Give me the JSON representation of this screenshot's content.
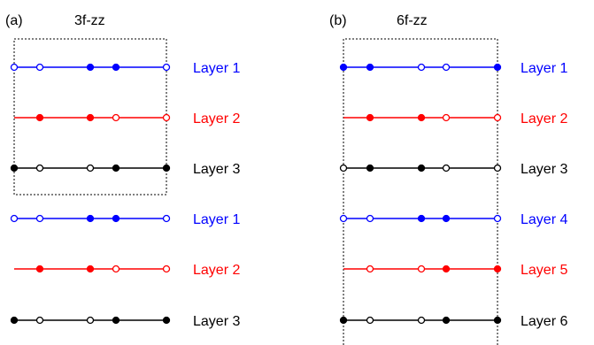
{
  "panels": [
    {
      "tag": "(a)",
      "title": "3f-zz",
      "layers": [
        {
          "label": "Layer 1",
          "color": "#0000ff",
          "dots": [
            "open",
            "open",
            "filled",
            "filled",
            "open"
          ]
        },
        {
          "label": "Layer 2",
          "color": "#ff0000",
          "dots": [
            null,
            "filled",
            "filled",
            "open",
            "open"
          ]
        },
        {
          "label": "Layer 3",
          "color": "#000000",
          "dots": [
            "filled",
            "open",
            "open",
            "filled",
            "filled"
          ]
        },
        {
          "label": "Layer 1",
          "color": "#0000ff",
          "dots": [
            "open",
            "open",
            "filled",
            "filled",
            "open"
          ]
        },
        {
          "label": "Layer 2",
          "color": "#ff0000",
          "dots": [
            null,
            "filled",
            "filled",
            "open",
            "open"
          ]
        },
        {
          "label": "Layer 3",
          "color": "#000000",
          "dots": [
            "filled",
            "open",
            "open",
            "filled",
            "filled"
          ]
        }
      ]
    },
    {
      "tag": "(b)",
      "title": "6f-zz",
      "layers": [
        {
          "label": "Layer 1",
          "color": "#0000ff",
          "dots": [
            "filled",
            "filled",
            "open",
            "open",
            "filled"
          ]
        },
        {
          "label": "Layer 2",
          "color": "#ff0000",
          "dots": [
            null,
            "filled",
            "filled",
            "open",
            "open"
          ]
        },
        {
          "label": "Layer 3",
          "color": "#000000",
          "dots": [
            "open",
            "filled",
            "filled",
            "open",
            "open"
          ]
        },
        {
          "label": "Layer 4",
          "color": "#0000ff",
          "dots": [
            "open",
            "open",
            "filled",
            "filled",
            "open"
          ]
        },
        {
          "label": "Layer 5",
          "color": "#ff0000",
          "dots": [
            null,
            "open",
            "open",
            "filled",
            "filled"
          ]
        },
        {
          "label": "Layer 6",
          "color": "#000000",
          "dots": [
            "filled",
            "open",
            "open",
            "filled",
            "filled"
          ]
        }
      ]
    }
  ]
}
